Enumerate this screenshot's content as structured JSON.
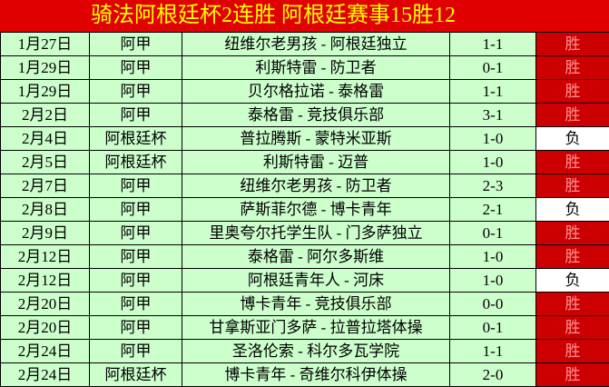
{
  "header": {
    "title": "骑法阿根廷杯2连胜 阿根廷赛事15胜12"
  },
  "table": {
    "rows": [
      {
        "date": "1月27日",
        "league": "阿甲",
        "match": "纽维尔老男孩 - 阿根廷独立",
        "score": "1-1",
        "result": "胜",
        "result_color": "#cc0000"
      },
      {
        "date": "1月29日",
        "league": "阿甲",
        "match": "利斯特雷 - 防卫者",
        "score": "0-1",
        "result": "胜",
        "result_color": "#cc0000"
      },
      {
        "date": "1月29日",
        "league": "阿甲",
        "match": "贝尔格拉诺 - 泰格雷",
        "score": "1-1",
        "result": "胜",
        "result_color": "#cc0000"
      },
      {
        "date": "2月2日",
        "league": "阿甲",
        "match": "泰格雷 - 竞技俱乐部",
        "score": "3-1",
        "result": "胜",
        "result_color": "#cc0000"
      },
      {
        "date": "2月4日",
        "league": "阿根廷杯",
        "match": "普拉腾斯 - 蒙特米亚斯",
        "score": "1-0",
        "result": "负",
        "result_color": "#ffffff"
      },
      {
        "date": "2月5日",
        "league": "阿根廷杯",
        "match": "利斯特雷 - 迈普",
        "score": "1-0",
        "result": "胜",
        "result_color": "#cc0000"
      },
      {
        "date": "2月7日",
        "league": "阿甲",
        "match": "纽维尔老男孩 - 防卫者",
        "score": "2-3",
        "result": "胜",
        "result_color": "#cc0000"
      },
      {
        "date": "2月8日",
        "league": "阿甲",
        "match": "萨斯菲尔德 - 博卡青年",
        "score": "2-1",
        "result": "负",
        "result_color": "#ffffff"
      },
      {
        "date": "2月9日",
        "league": "阿甲",
        "match": "里奥夸尔托学生队 - 门多萨独立",
        "score": "0-1",
        "result": "胜",
        "result_color": "#cc0000"
      },
      {
        "date": "2月12日",
        "league": "阿甲",
        "match": "泰格雷 - 阿尔多斯维",
        "score": "1-0",
        "result": "胜",
        "result_color": "#cc0000"
      },
      {
        "date": "2月12日",
        "league": "阿甲",
        "match": "阿根廷青年人 - 河床",
        "score": "1-0",
        "result": "负",
        "result_color": "#ffffff"
      },
      {
        "date": "2月20日",
        "league": "阿甲",
        "match": "博卡青年 - 竞技俱乐部",
        "score": "0-0",
        "result": "胜",
        "result_color": "#cc0000"
      },
      {
        "date": "2月20日",
        "league": "阿甲",
        "match": "甘拿斯亚门多萨 - 拉普拉塔体操",
        "score": "0-1",
        "result": "胜",
        "result_color": "#cc0000"
      },
      {
        "date": "2月24日",
        "league": "阿甲",
        "match": "圣洛伦索 - 科尔多瓦学院",
        "score": "1-1",
        "result": "胜",
        "result_color": "#cc0000"
      },
      {
        "date": "2月24日",
        "league": "阿根廷杯",
        "match": "博卡青年 - 奇维尔科伊体操",
        "score": "2-0",
        "result": "胜",
        "result_color": "#cc0000"
      }
    ]
  }
}
